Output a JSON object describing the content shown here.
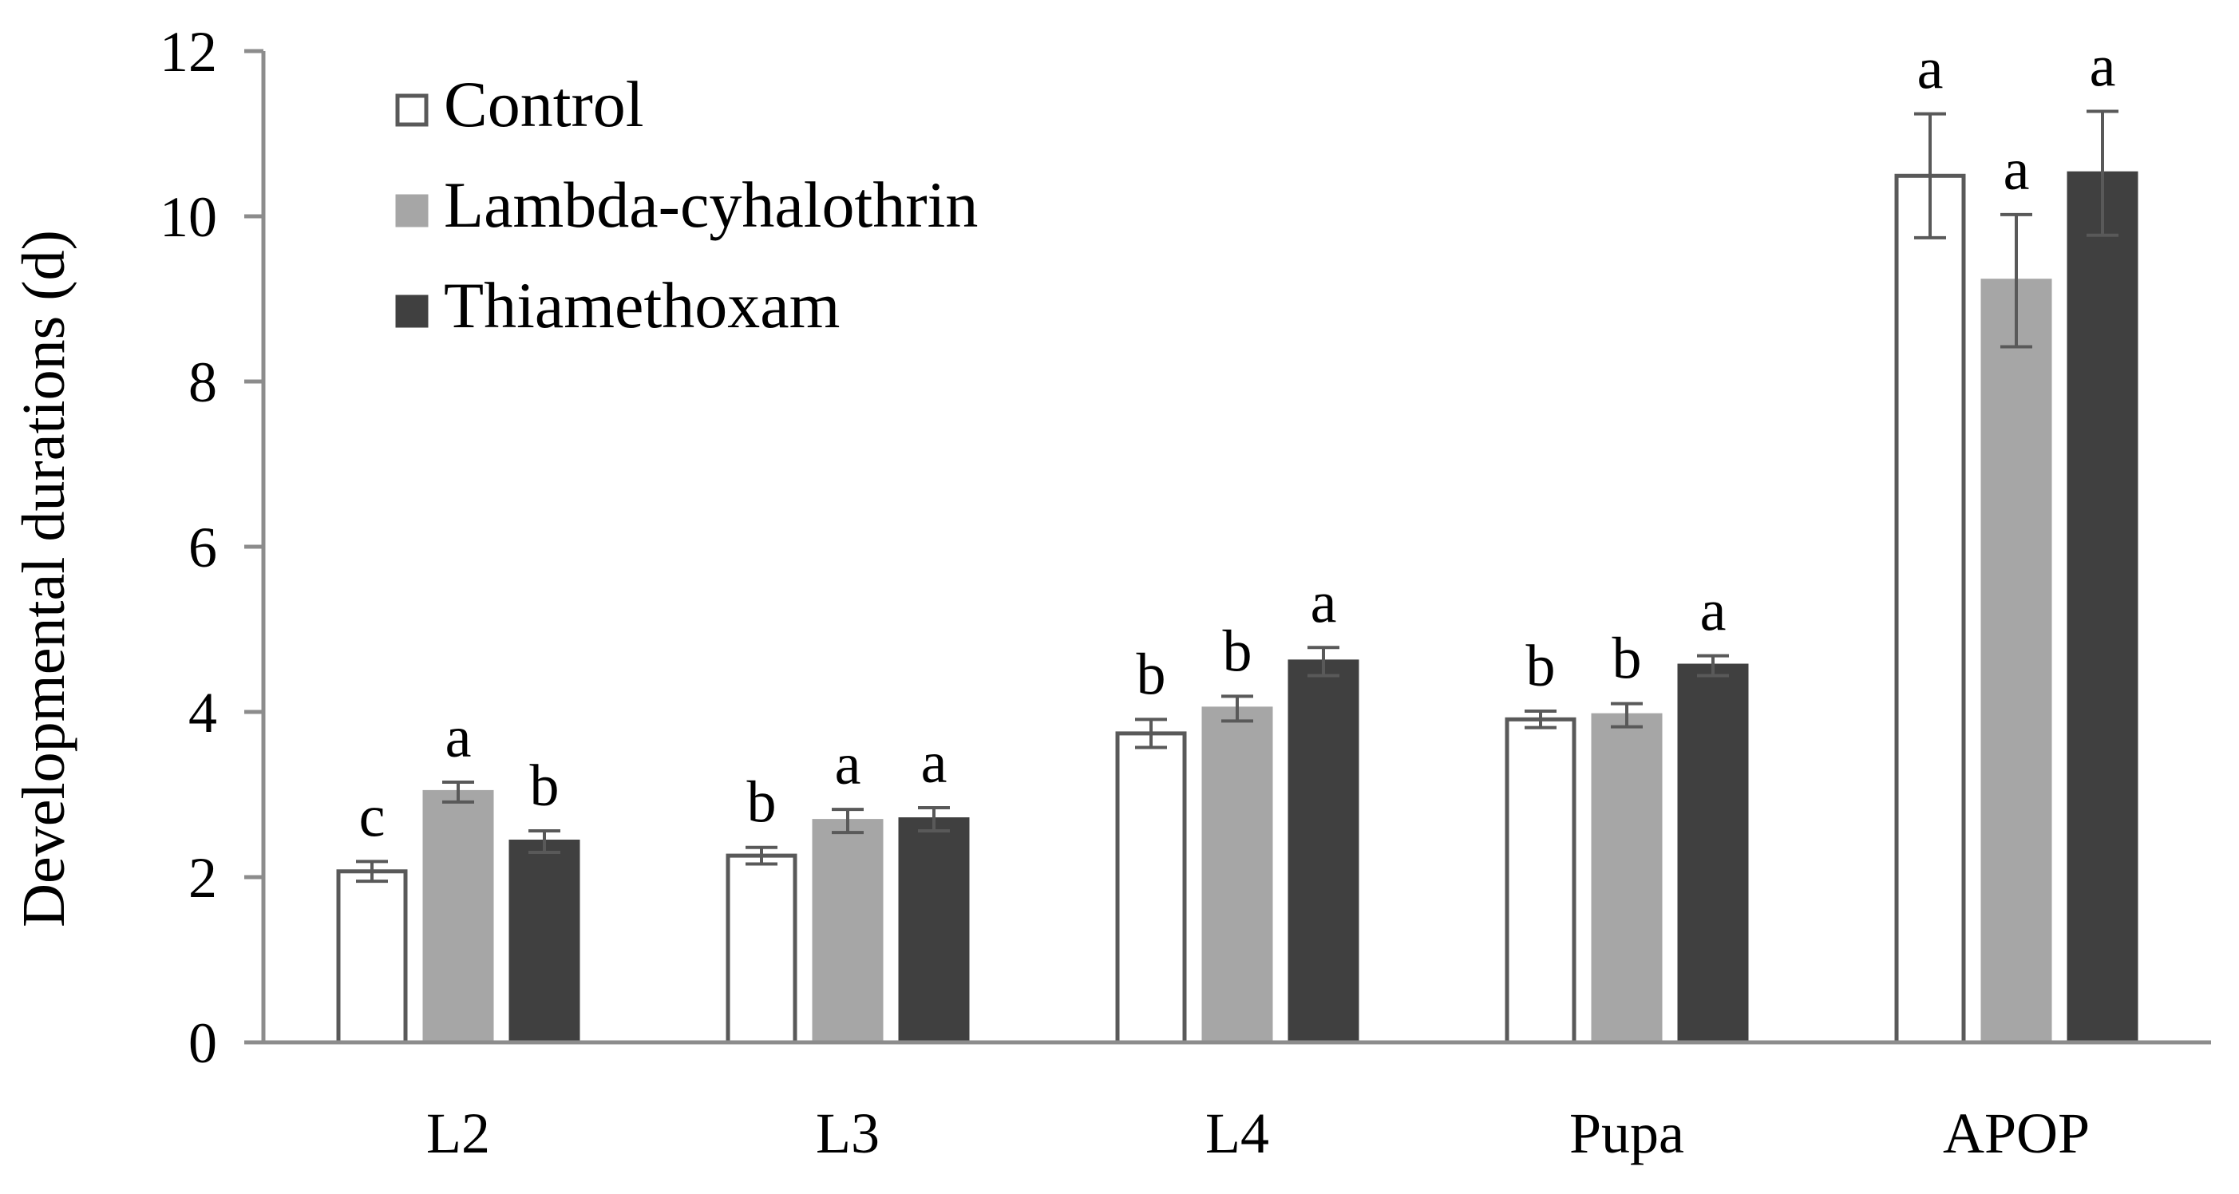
{
  "chart_data": {
    "type": "bar",
    "title": "",
    "xlabel": "",
    "ylabel": "Developmental durations (d)",
    "ylim": [
      0,
      12
    ],
    "yticks": [
      0,
      2,
      4,
      6,
      8,
      10,
      12
    ],
    "grid": false,
    "legend_position": "top-left",
    "categories": [
      "L2",
      "L3",
      "L4",
      "Pupa",
      "APOP"
    ],
    "series": [
      {
        "name": "Control",
        "color": "#ffffff",
        "stroke": "#595959",
        "values": [
          2.07,
          2.26,
          3.74,
          3.91,
          10.49
        ],
        "errors": [
          0.12,
          0.1,
          0.17,
          0.1,
          0.75
        ],
        "letters": [
          "c",
          "b",
          "b",
          "b",
          "a"
        ]
      },
      {
        "name": "Lambda-cyhalothrin",
        "color": "#a6a6a6",
        "stroke": "#a6a6a6",
        "values": [
          3.03,
          2.68,
          4.04,
          3.96,
          9.22
        ],
        "errors": [
          0.12,
          0.14,
          0.15,
          0.14,
          0.8
        ],
        "letters": [
          "a",
          "a",
          "b",
          "b",
          "a"
        ]
      },
      {
        "name": "Thiamethoxam",
        "color": "#404040",
        "stroke": "#404040",
        "values": [
          2.43,
          2.7,
          4.61,
          4.56,
          10.52
        ],
        "errors": [
          0.13,
          0.14,
          0.17,
          0.12,
          0.75
        ],
        "letters": [
          "b",
          "a",
          "a",
          "a",
          "a"
        ]
      }
    ]
  }
}
